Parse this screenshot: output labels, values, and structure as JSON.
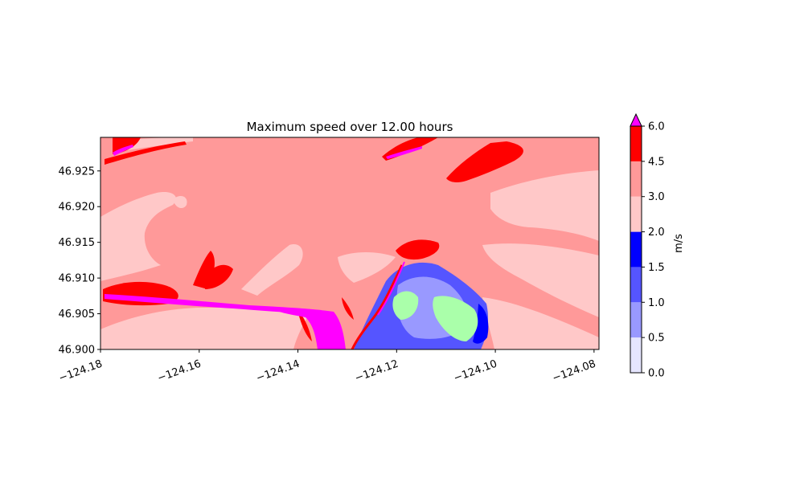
{
  "chart_data": {
    "type": "heatmap",
    "title": "Maximum speed over 12.00 hours",
    "xlabel": "",
    "ylabel": "",
    "xlim": [
      -124.18,
      -124.079
    ],
    "ylim": [
      46.9,
      46.9297
    ],
    "x_ticks": [
      -124.18,
      -124.16,
      -124.14,
      -124.12,
      -124.1,
      -124.08
    ],
    "x_tick_labels": [
      "−124.18",
      "−124.16",
      "−124.14",
      "−124.12",
      "−124.10",
      "−124.08"
    ],
    "y_ticks": [
      46.9,
      46.905,
      46.91,
      46.915,
      46.92,
      46.925
    ],
    "y_tick_labels": [
      "46.900",
      "46.905",
      "46.910",
      "46.915",
      "46.920",
      "46.925"
    ],
    "grid": false,
    "colorbar": {
      "label": "m/s",
      "levels": [
        0.0,
        0.5,
        1.0,
        1.5,
        2.0,
        3.0,
        4.5,
        6.0
      ],
      "tick_labels": [
        "0.0",
        "0.5",
        "1.0",
        "1.5",
        "2.0",
        "3.0",
        "4.5",
        "6.0"
      ],
      "colors": [
        "#e6e6ff",
        "#9999ff",
        "#5555ff",
        "#0000ff",
        "#ffc8c8",
        "#ff9999",
        "#ff0000"
      ],
      "extend_max_color": "#ff00ff"
    },
    "special_colors": {
      "dry_land": "#aaffaa"
    }
  }
}
